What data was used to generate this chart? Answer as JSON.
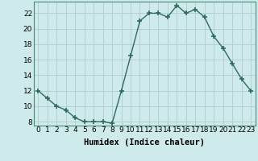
{
  "x": [
    0,
    1,
    2,
    3,
    4,
    5,
    6,
    7,
    8,
    9,
    10,
    11,
    12,
    13,
    14,
    15,
    16,
    17,
    18,
    19,
    20,
    21,
    22,
    23
  ],
  "y": [
    12,
    11,
    10,
    9.5,
    8.5,
    8,
    8,
    8,
    7.8,
    12,
    16.5,
    21,
    22,
    22,
    21.5,
    23,
    22,
    22.5,
    21.5,
    19,
    17.5,
    15.5,
    13.5,
    12
  ],
  "line_color": "#2e6b5e",
  "marker": "+",
  "marker_size": 4,
  "linewidth": 1.0,
  "bg_color": "#ceeaea",
  "grid_color": "#b0cccc",
  "xlabel": "Humidex (Indice chaleur)",
  "ylim": [
    7.5,
    23.5
  ],
  "xlim": [
    -0.5,
    23.5
  ],
  "yticks": [
    8,
    10,
    12,
    14,
    16,
    18,
    20,
    22
  ],
  "xticks": [
    0,
    1,
    2,
    3,
    4,
    5,
    6,
    7,
    8,
    9,
    10,
    11,
    12,
    13,
    14,
    15,
    16,
    17,
    18,
    19,
    20,
    21,
    22,
    23
  ],
  "xlabel_fontsize": 7.5,
  "tick_fontsize": 6.5
}
